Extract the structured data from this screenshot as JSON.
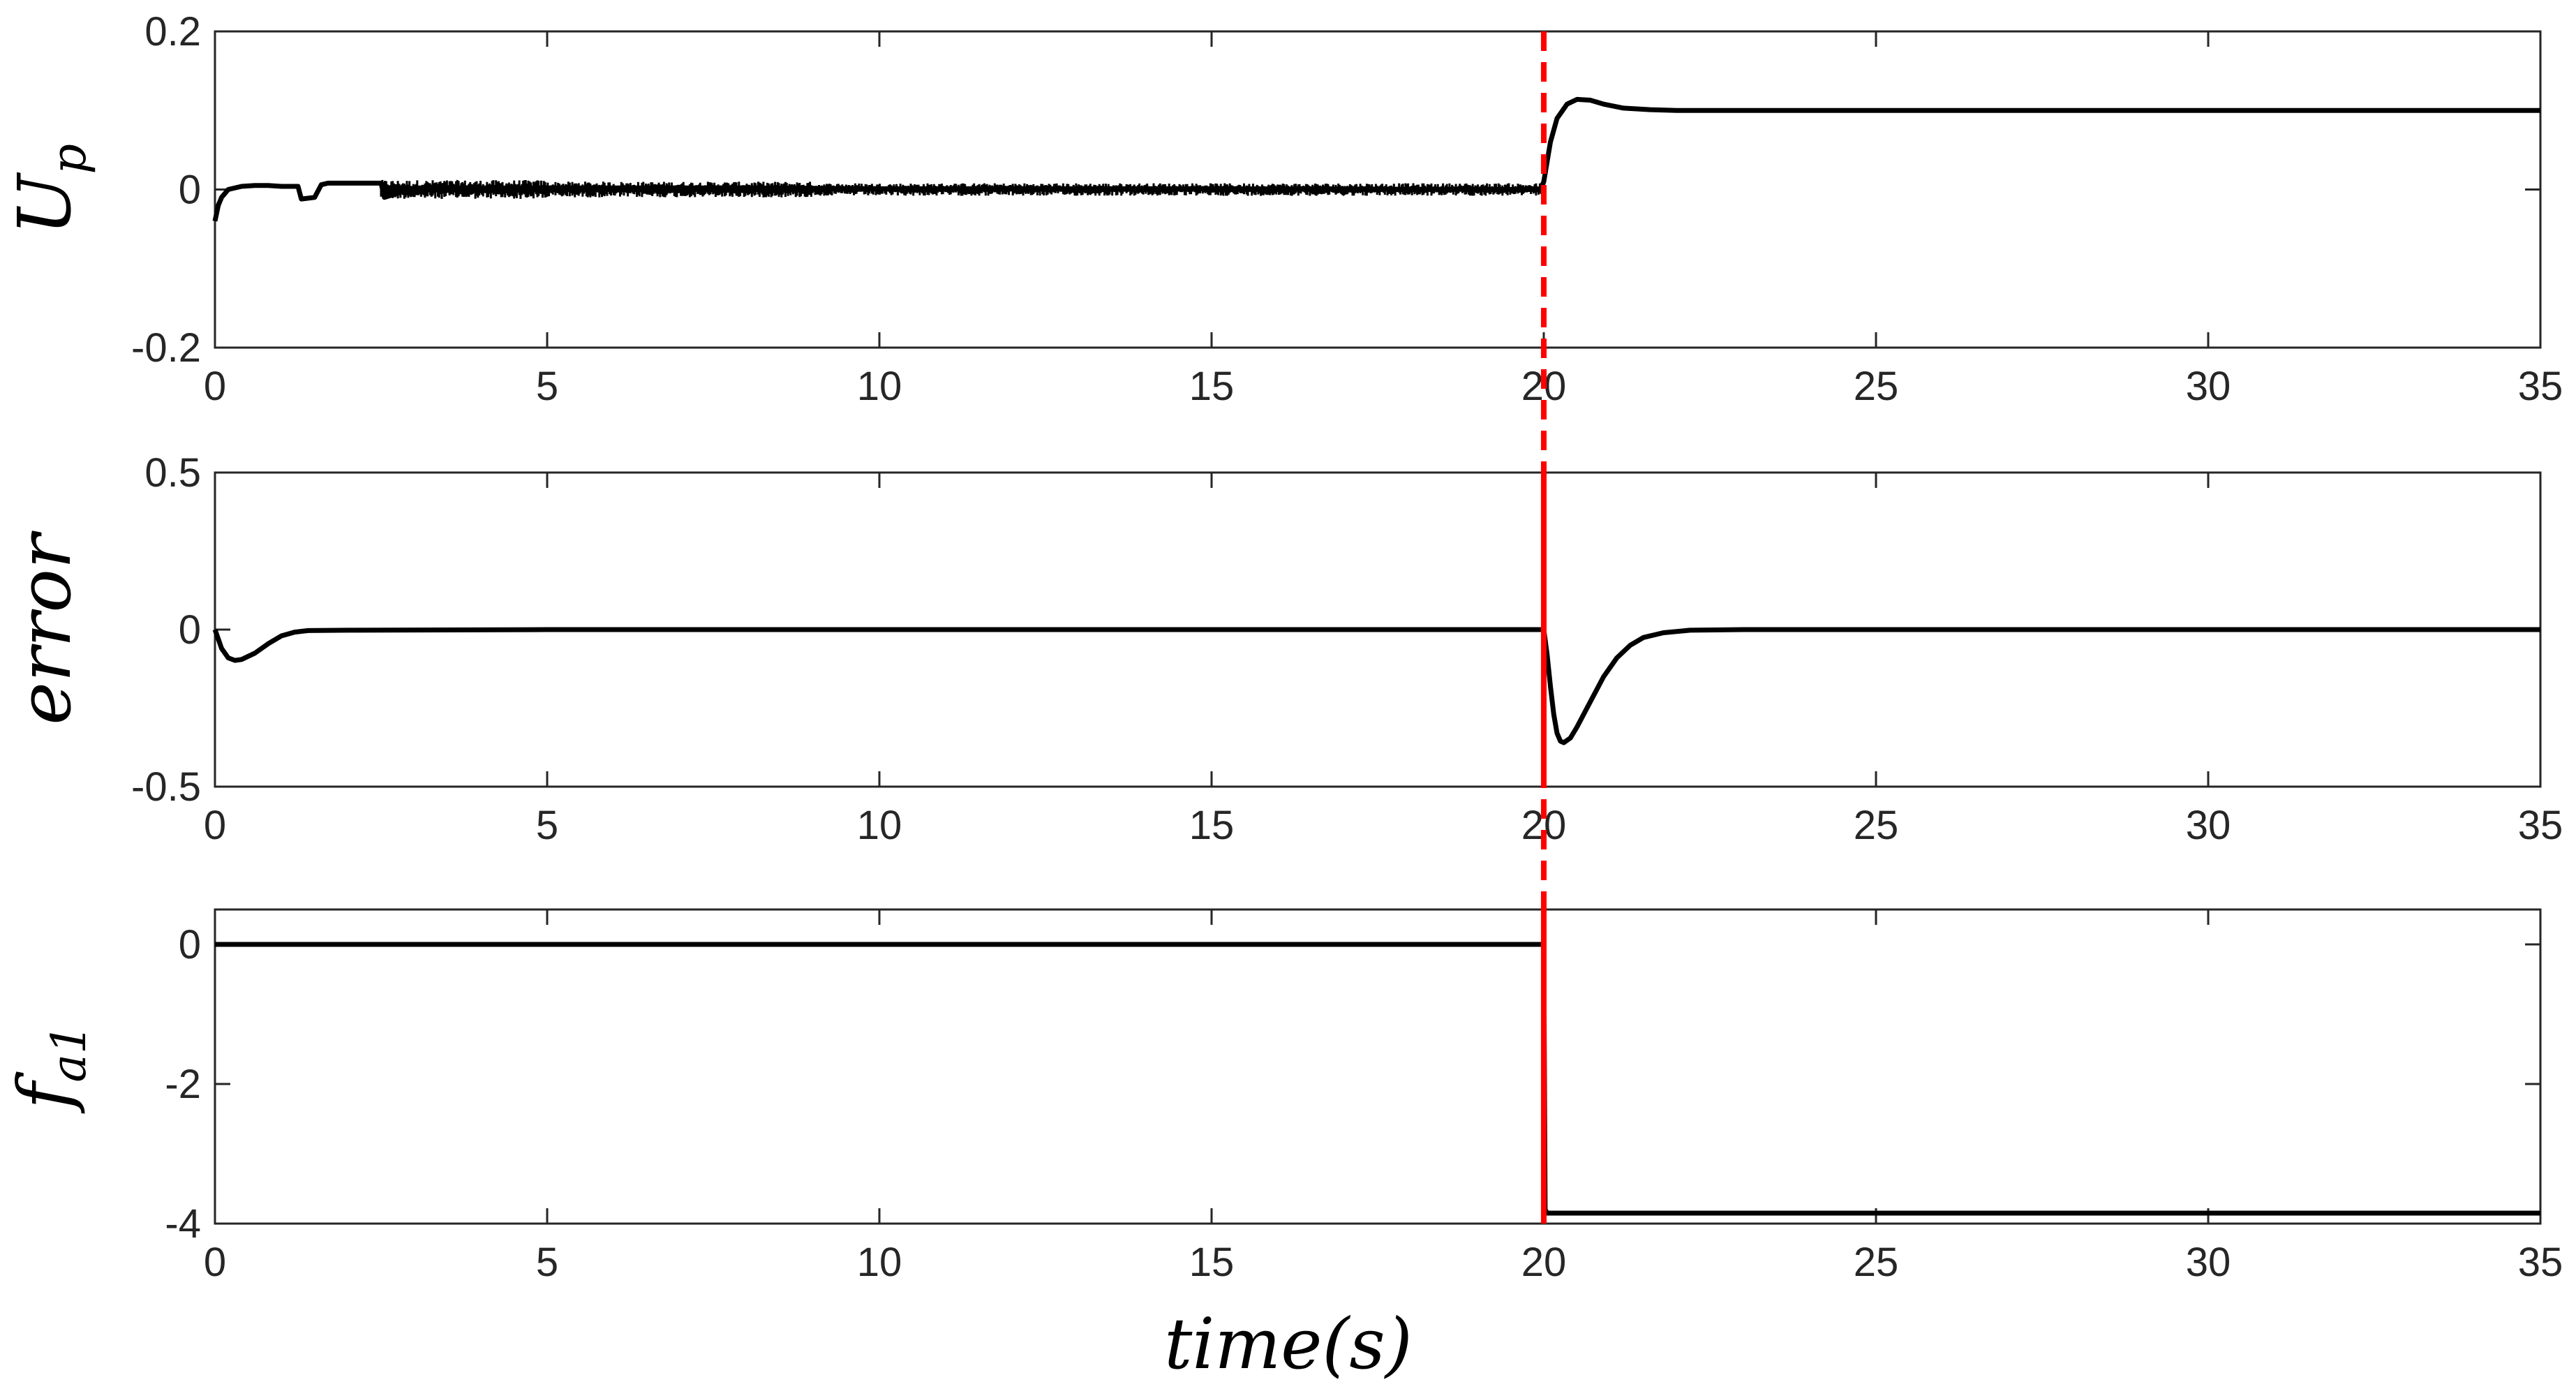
{
  "chart_data": [
    {
      "type": "line",
      "id": "up",
      "ylabel_main": "U",
      "ylabel_sub": "p",
      "xlim": [
        0,
        35
      ],
      "ylim": [
        -0.2,
        0.2
      ],
      "xticks": [
        0,
        5,
        10,
        15,
        20,
        25,
        30,
        35
      ],
      "yticks": [
        -0.2,
        0,
        0.2
      ],
      "ytick_labels": [
        "-0.2",
        "0",
        "0.2"
      ],
      "grid": false,
      "series": [
        {
          "color": "#000000",
          "x": [
            0,
            0.05,
            0.1,
            0.2,
            0.4,
            0.6,
            0.8,
            1.0,
            1.25,
            1.3,
            1.5,
            1.6,
            1.7,
            2.0,
            2.5,
            2.55,
            3,
            5,
            8,
            10,
            15,
            19.95,
            20.0,
            20.1,
            20.2,
            20.35,
            20.5,
            20.7,
            20.9,
            21.2,
            21.6,
            22.0,
            23,
            25,
            30,
            35
          ],
          "y": [
            -0.04,
            -0.02,
            -0.01,
            0.0,
            0.004,
            0.005,
            0.005,
            0.004,
            0.004,
            -0.012,
            -0.01,
            0.006,
            0.008,
            0.008,
            0.008,
            -0.01,
            0.002,
            0.002,
            0.002,
            0.001,
            0.001,
            0.0,
            0.01,
            0.06,
            0.09,
            0.108,
            0.114,
            0.113,
            0.108,
            0.103,
            0.101,
            0.1,
            0.1,
            0.1,
            0.1,
            0.1
          ]
        }
      ],
      "noise_band": {
        "x_start": 2.5,
        "x_end": 20.0,
        "note": ""
      },
      "fault_marker": {
        "x": 20,
        "color": "#ff0000",
        "style": "dashed"
      }
    },
    {
      "type": "line",
      "id": "error",
      "ylabel_main": "error",
      "ylabel_sub": "",
      "xlim": [
        0,
        35
      ],
      "ylim": [
        -0.5,
        0.5
      ],
      "xticks": [
        0,
        5,
        10,
        15,
        20,
        25,
        30,
        35
      ],
      "yticks": [
        -0.5,
        0,
        0.5
      ],
      "ytick_labels": [
        "-0.5",
        "0",
        "0.5"
      ],
      "grid": false,
      "series": [
        {
          "color": "#000000",
          "x": [
            0,
            0.05,
            0.1,
            0.2,
            0.3,
            0.4,
            0.6,
            0.8,
            1.0,
            1.2,
            1.4,
            2,
            5,
            10,
            15,
            19.99,
            20.0,
            20.05,
            20.1,
            20.15,
            20.2,
            20.25,
            20.3,
            20.4,
            20.5,
            20.7,
            20.9,
            21.1,
            21.3,
            21.5,
            21.8,
            22.2,
            23,
            25,
            30,
            35
          ],
          "y": [
            0,
            -0.03,
            -0.06,
            -0.09,
            -0.098,
            -0.095,
            -0.075,
            -0.045,
            -0.02,
            -0.008,
            -0.003,
            -0.002,
            0.0,
            0.0,
            0.0,
            0.0,
            0.0,
            -0.08,
            -0.18,
            -0.27,
            -0.33,
            -0.355,
            -0.36,
            -0.345,
            -0.31,
            -0.23,
            -0.15,
            -0.09,
            -0.05,
            -0.025,
            -0.01,
            -0.002,
            0,
            0,
            0,
            0
          ]
        }
      ],
      "fault_marker": {
        "x": 20,
        "color": "#ff0000",
        "style": "dashed"
      }
    },
    {
      "type": "line",
      "id": "fa1",
      "ylabel_main": "f",
      "ylabel_sub": "a1",
      "xlim": [
        0,
        35
      ],
      "ylim": [
        -4,
        0.5
      ],
      "xticks": [
        0,
        5,
        10,
        15,
        20,
        25,
        30,
        35
      ],
      "yticks": [
        -4,
        -2,
        0
      ],
      "ytick_labels": [
        "-4",
        "-2",
        "0"
      ],
      "grid": false,
      "series": [
        {
          "color": "#000000",
          "x": [
            0,
            19.95,
            20.0,
            20.02,
            20.05,
            35
          ],
          "y": [
            0,
            0,
            0,
            -3.8,
            -3.85,
            -3.85
          ]
        }
      ],
      "fault_marker": {
        "x": 20,
        "color": "#ff0000",
        "style": "dashed"
      }
    }
  ],
  "xlabel": "time(s)",
  "xtick_labels": [
    "0",
    "5",
    "10",
    "15",
    "20",
    "25",
    "30",
    "35"
  ]
}
